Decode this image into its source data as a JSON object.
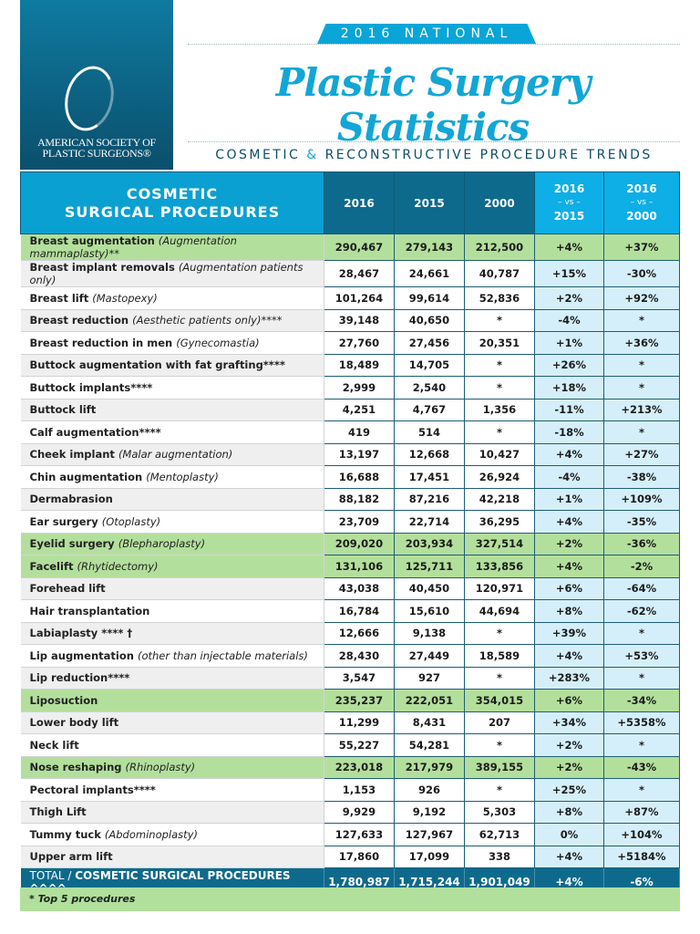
{
  "logo": {
    "org_line1": "AMERICAN SOCIETY OF",
    "org_line2": "PLASTIC SURGEONS®"
  },
  "header": {
    "banner": "2016 NATIONAL",
    "title": "Plastic Surgery Statistics",
    "subtitle_a": "COSMETIC",
    "subtitle_amp": "&",
    "subtitle_b": "RECONSTRUCTIVE PROCEDURE TRENDS"
  },
  "table": {
    "head_line1": "COSMETIC",
    "head_line2": "SURGICAL PROCEDURES",
    "col_2016": "2016",
    "col_2015": "2015",
    "col_2000": "2000",
    "vs15": {
      "a": "2016",
      "vs": "– vs –",
      "b": "2015"
    },
    "vs00": {
      "a": "2016",
      "vs": "– vs –",
      "b": "2000"
    },
    "rows": [
      {
        "name": "Breast augmentation",
        "note": "(Augmentation mammaplasty)**",
        "v2016": "290,467",
        "v2015": "279,143",
        "v2000": "212,500",
        "p15": "+4%",
        "p00": "+37%",
        "top": true
      },
      {
        "name": "Breast implant removals",
        "note": "(Augmentation patients only)",
        "v2016": "28,467",
        "v2015": "24,661",
        "v2000": "40,787",
        "p15": "+15%",
        "p00": "-30%"
      },
      {
        "name": "Breast lift",
        "note": "(Mastopexy)",
        "v2016": "101,264",
        "v2015": "99,614",
        "v2000": "52,836",
        "p15": "+2%",
        "p00": "+92%"
      },
      {
        "name": "Breast reduction",
        "note": "(Aesthetic patients only)****",
        "v2016": "39,148",
        "v2015": "40,650",
        "v2000": "*",
        "p15": "-4%",
        "p00": "*"
      },
      {
        "name": "Breast reduction in men",
        "note": "(Gynecomastia)",
        "v2016": "27,760",
        "v2015": "27,456",
        "v2000": "20,351",
        "p15": "+1%",
        "p00": "+36%"
      },
      {
        "name": "Buttock augmentation with fat grafting****",
        "note": "",
        "v2016": "18,489",
        "v2015": "14,705",
        "v2000": "*",
        "p15": "+26%",
        "p00": "*"
      },
      {
        "name": "Buttock implants****",
        "note": "",
        "v2016": "2,999",
        "v2015": "2,540",
        "v2000": "*",
        "p15": "+18%",
        "p00": "*"
      },
      {
        "name": "Buttock lift",
        "note": "",
        "v2016": "4,251",
        "v2015": "4,767",
        "v2000": "1,356",
        "p15": "-11%",
        "p00": "+213%"
      },
      {
        "name": "Calf augmentation****",
        "note": "",
        "v2016": "419",
        "v2015": "514",
        "v2000": "*",
        "p15": "-18%",
        "p00": "*"
      },
      {
        "name": "Cheek implant",
        "note": "(Malar augmentation)",
        "v2016": "13,197",
        "v2015": "12,668",
        "v2000": "10,427",
        "p15": "+4%",
        "p00": "+27%"
      },
      {
        "name": "Chin augmentation",
        "note": "(Mentoplasty)",
        "v2016": "16,688",
        "v2015": "17,451",
        "v2000": "26,924",
        "p15": "-4%",
        "p00": "-38%"
      },
      {
        "name": "Dermabrasion",
        "note": "",
        "v2016": "88,182",
        "v2015": "87,216",
        "v2000": "42,218",
        "p15": "+1%",
        "p00": "+109%"
      },
      {
        "name": "Ear surgery",
        "note": "(Otoplasty)",
        "v2016": "23,709",
        "v2015": "22,714",
        "v2000": "36,295",
        "p15": "+4%",
        "p00": "-35%"
      },
      {
        "name": "Eyelid surgery",
        "note": "(Blepharoplasty)",
        "v2016": "209,020",
        "v2015": "203,934",
        "v2000": "327,514",
        "p15": "+2%",
        "p00": "-36%",
        "top": true
      },
      {
        "name": "Facelift",
        "note": "(Rhytidectomy)",
        "v2016": "131,106",
        "v2015": "125,711",
        "v2000": "133,856",
        "p15": "+4%",
        "p00": "-2%",
        "top": true
      },
      {
        "name": "Forehead lift",
        "note": "",
        "v2016": "43,038",
        "v2015": "40,450",
        "v2000": "120,971",
        "p15": "+6%",
        "p00": "-64%"
      },
      {
        "name": "Hair transplantation",
        "note": "",
        "v2016": "16,784",
        "v2015": "15,610",
        "v2000": "44,694",
        "p15": "+8%",
        "p00": "-62%"
      },
      {
        "name": "Labiaplasty **** †",
        "note": "",
        "v2016": "12,666",
        "v2015": "9,138",
        "v2000": "*",
        "p15": "+39%",
        "p00": "*"
      },
      {
        "name": "Lip augmentation",
        "note": "(other than injectable materials)",
        "v2016": "28,430",
        "v2015": "27,449",
        "v2000": "18,589",
        "p15": "+4%",
        "p00": "+53%"
      },
      {
        "name": "Lip reduction****",
        "note": "",
        "v2016": "3,547",
        "v2015": "927",
        "v2000": "*",
        "p15": "+283%",
        "p00": "*"
      },
      {
        "name": "Liposuction",
        "note": "",
        "v2016": "235,237",
        "v2015": "222,051",
        "v2000": "354,015",
        "p15": "+6%",
        "p00": "-34%",
        "top": true
      },
      {
        "name": "Lower body lift",
        "note": "",
        "v2016": "11,299",
        "v2015": "8,431",
        "v2000": "207",
        "p15": "+34%",
        "p00": "+5358%"
      },
      {
        "name": "Neck lift",
        "note": "",
        "v2016": "55,227",
        "v2015": "54,281",
        "v2000": "*",
        "p15": "+2%",
        "p00": "*"
      },
      {
        "name": "Nose reshaping",
        "note": "(Rhinoplasty)",
        "v2016": "223,018",
        "v2015": "217,979",
        "v2000": "389,155",
        "p15": "+2%",
        "p00": "-43%",
        "top": true
      },
      {
        "name": "Pectoral implants****",
        "note": "",
        "v2016": "1,153",
        "v2015": "926",
        "v2000": "*",
        "p15": "+25%",
        "p00": "*"
      },
      {
        "name": "Thigh Lift",
        "note": "",
        "v2016": "9,929",
        "v2015": "9,192",
        "v2000": "5,303",
        "p15": "+8%",
        "p00": "+87%"
      },
      {
        "name": "Tummy tuck",
        "note": "(Abdominoplasty)",
        "v2016": "127,633",
        "v2015": "127,967",
        "v2000": "62,713",
        "p15": "0%",
        "p00": "+104%"
      },
      {
        "name": "Upper arm lift",
        "note": "",
        "v2016": "17,860",
        "v2015": "17,099",
        "v2000": "338",
        "p15": "+4%",
        "p00": "+5184%"
      }
    ],
    "total": {
      "prefix": "TOTAL / ",
      "label": "COSMETIC SURGICAL PROCEDURES ^^^^",
      "v2016": "1,780,987",
      "v2015": "1,715,244",
      "v2000": "1,901,049",
      "p15": "+4%",
      "p00": "-6%"
    }
  },
  "footnote": "* Top 5 procedures",
  "colors": {
    "cyan": "#0aa0d2",
    "teal": "#0e6a8c",
    "top5_green": "#b3df9c",
    "pct_blue": "#d5effa"
  }
}
